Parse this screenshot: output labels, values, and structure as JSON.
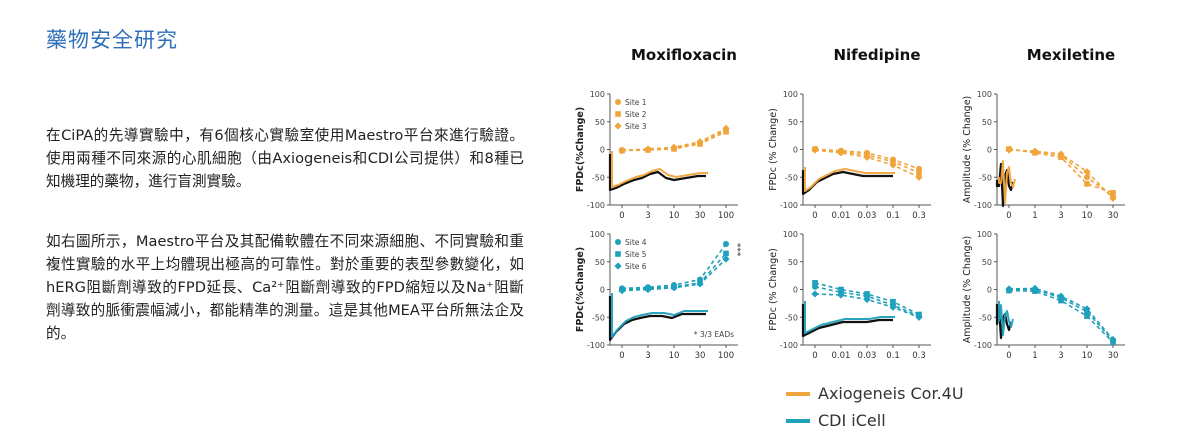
{
  "page": {
    "title": "藥物安全研究",
    "paragraph1": "在CiPA的先導實驗中，有6個核心實驗室使用Maestro平台來進行驗證。使用兩種不同來源的心肌細胞（由Axiogeneis和CDI公司提供）和8種已知機理的藥物，進行盲測實驗。",
    "paragraph2": "如右圖所示，Maestro平台及其配備軟體在不同來源細胞、不同實驗和重複性實驗的水平上均體現出極高的可靠性。對於重要的表型參數變化，如hERG阻斷劑導致的FPD延長、Ca²⁺阻斷劑導致的FPD縮短以及Na⁺阻斷劑導致的脈衝震幅減小，都能精準的測量。這是其他MEA平台所無法企及的。"
  },
  "colors": {
    "orange": "#f0a53c",
    "blue": "#1fa0bb",
    "trace": "#111111",
    "axis": "#555555"
  },
  "legend": [
    {
      "label": "Axiogeneis Cor.4U",
      "color": "#f0a53c"
    },
    {
      "label": "CDI iCell",
      "color": "#1fa0bb"
    }
  ],
  "chart_data": [
    {
      "type": "line",
      "title": "Moxifloxacin",
      "row": "Axiogeneis",
      "ylabel": "FPDc(%Change)",
      "ylim": [
        -100,
        100
      ],
      "yticks": [
        "100",
        "50",
        "0",
        "-50",
        "-100"
      ],
      "categories": [
        "0",
        "3",
        "10",
        "30",
        "100"
      ],
      "legend_entries": [
        "Site 1",
        "Site 2",
        "Site 3"
      ],
      "color": "#f0a53c",
      "series": [
        {
          "name": "Site 1",
          "values": [
            -1,
            0,
            3,
            12,
            35
          ]
        },
        {
          "name": "Site 2",
          "values": [
            -2,
            -1,
            1,
            10,
            32
          ]
        },
        {
          "name": "Site 3",
          "values": [
            -2,
            1,
            4,
            14,
            38
          ]
        }
      ]
    },
    {
      "type": "line",
      "title": "Nifedipine",
      "row": "Axiogeneis",
      "ylabel": "FPDc (% Change)",
      "ylim": [
        -100,
        100
      ],
      "yticks": [
        "100",
        "50",
        "0",
        "-50",
        "-100"
      ],
      "categories": [
        "0",
        "0.01",
        "0.03",
        "0.1",
        "0.3"
      ],
      "color": "#f0a53c",
      "series": [
        {
          "name": "Site 1",
          "values": [
            0,
            -2,
            -6,
            -18,
            -35
          ]
        },
        {
          "name": "Site 2",
          "values": [
            1,
            -4,
            -10,
            -22,
            -42
          ]
        },
        {
          "name": "Site 3",
          "values": [
            -1,
            -6,
            -14,
            -28,
            -50
          ]
        }
      ]
    },
    {
      "type": "line",
      "title": "Mexiletine",
      "row": "Axiogeneis",
      "ylabel": "Amplitude (% Change)",
      "ylim": [
        -100,
        100
      ],
      "yticks": [
        "100",
        "50",
        "0",
        "-50",
        "-100"
      ],
      "categories": [
        "0",
        "1",
        "3",
        "10",
        "30"
      ],
      "color": "#f0a53c",
      "series": [
        {
          "name": "Site 1",
          "values": [
            0,
            -4,
            -10,
            -50,
            -85
          ]
        },
        {
          "name": "Site 2",
          "values": [
            1,
            -6,
            -14,
            -62,
            -78
          ]
        },
        {
          "name": "Site 3",
          "values": [
            -1,
            -3,
            -8,
            -40,
            -88
          ]
        }
      ]
    },
    {
      "type": "line",
      "row": "CDI",
      "ylabel": "FPDc(%Change)",
      "ylim": [
        -100,
        100
      ],
      "yticks": [
        "100",
        "50",
        "0",
        "-50",
        "-100"
      ],
      "categories": [
        "0",
        "3",
        "10",
        "30",
        "100"
      ],
      "legend_entries": [
        "Site 4",
        "Site 5",
        "Site 6"
      ],
      "annotation": "* 3/3 EADs",
      "color": "#1fa0bb",
      "series": [
        {
          "name": "Site 4",
          "values": [
            2,
            4,
            8,
            18,
            82
          ]
        },
        {
          "name": "Site 5",
          "values": [
            0,
            2,
            5,
            12,
            65
          ]
        },
        {
          "name": "Site 6",
          "values": [
            -2,
            0,
            3,
            10,
            55
          ]
        }
      ]
    },
    {
      "type": "line",
      "row": "CDI",
      "ylabel": "FPDc (% Change)",
      "ylim": [
        -100,
        100
      ],
      "yticks": [
        "100",
        "50",
        "0",
        "-50",
        "-100"
      ],
      "categories": [
        "0",
        "0.01",
        "0.03",
        "0.1",
        "0.3"
      ],
      "color": "#1fa0bb",
      "series": [
        {
          "name": "Site 4",
          "values": [
            5,
            -5,
            -12,
            -28,
            -48
          ]
        },
        {
          "name": "Site 5",
          "values": [
            12,
            0,
            -8,
            -22,
            -45
          ]
        },
        {
          "name": "Site 6",
          "values": [
            -8,
            -10,
            -18,
            -32,
            -50
          ]
        }
      ]
    },
    {
      "type": "line",
      "row": "CDI",
      "ylabel": "Amplitude (% Change)",
      "ylim": [
        -100,
        100
      ],
      "yticks": [
        "100",
        "50",
        "0",
        "-50",
        "-100"
      ],
      "categories": [
        "0",
        "1",
        "3",
        "10",
        "30"
      ],
      "color": "#1fa0bb",
      "series": [
        {
          "name": "Site 4",
          "values": [
            0,
            0,
            -15,
            -40,
            -92
          ]
        },
        {
          "name": "Site 5",
          "values": [
            -2,
            -3,
            -20,
            -48,
            -95
          ]
        },
        {
          "name": "Site 6",
          "values": [
            1,
            2,
            -12,
            -35,
            -90
          ]
        }
      ]
    }
  ]
}
